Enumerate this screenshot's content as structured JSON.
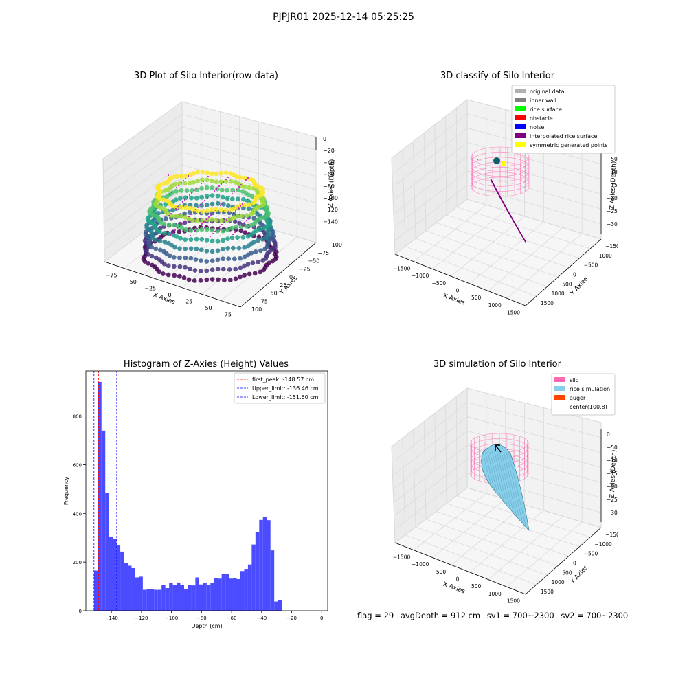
{
  "figure": {
    "suptitle": "PJPJR01 2025-12-14 05:25:25",
    "footer": {
      "flag": "flag = 29",
      "avg_depth": "avgDepth = 912 cm",
      "sv1": "sv1 = 700~2300",
      "sv2": "sv2 = 700~2300"
    }
  },
  "colors": {
    "hist_bar": "#4b4bff",
    "first_peak_line": "#ff0000",
    "limit_line": "#0000ff",
    "silo": "#ff69b4",
    "rice_sim": "#87ceeb",
    "auger": "#ff4500",
    "interp": "#800080",
    "symmetric": "#ffff00"
  },
  "chart_data": [
    {
      "id": "raw",
      "type": "scatter",
      "title": "3D Plot of Silo Interior(row data)",
      "xlabel": "X Axies",
      "ylabel": "Y Axies",
      "zlabel": "Z Axies (Depth)",
      "x_ticks": [
        "−75",
        "−50",
        "−25",
        "0",
        "25",
        "50",
        "75"
      ],
      "y_ticks": [
        "−100",
        "−75",
        "−50",
        "−25",
        "0",
        "25",
        "50",
        "75",
        "100"
      ],
      "z_ticks": [
        "0",
        "−20",
        "−40",
        "−60",
        "−80",
        "−100",
        "−120",
        "−140"
      ],
      "xlim": [
        -90,
        90
      ],
      "ylim": [
        -100,
        100
      ],
      "zlim": [
        -150,
        0
      ],
      "colormap": "viridis"
    },
    {
      "id": "classify",
      "type": "scatter",
      "title": "3D classify of Silo Interior",
      "xlabel": "X Axies",
      "ylabel": "Y Axies",
      "zlabel": "Z Axies (Depth)",
      "x_ticks": [
        "−1500",
        "−1000",
        "−500",
        "0",
        "500",
        "1000",
        "1500"
      ],
      "y_ticks": [
        "−1500",
        "−1000",
        "−500",
        "0",
        "500",
        "1000",
        "1500"
      ],
      "z_ticks": [
        "0",
        "−500",
        "−1000",
        "−1500",
        "−2000",
        "−2500",
        "−3000"
      ],
      "legend_position": "upper right",
      "legend": [
        {
          "label": "original data",
          "color": "#b0b0b0"
        },
        {
          "label": "inner wall",
          "color": "#808080"
        },
        {
          "label": "rice surface",
          "color": "#00ff00"
        },
        {
          "label": "obstacle",
          "color": "#ff0000"
        },
        {
          "label": "noise",
          "color": "#0000ff"
        },
        {
          "label": "interpolated rice surface",
          "color": "#800080"
        },
        {
          "label": "symmetric generated points",
          "color": "#ffff00"
        }
      ]
    },
    {
      "id": "hist",
      "type": "bar",
      "title": "Histogram of Z-Axies (Height) Values",
      "xlabel": "Depth (cm)",
      "ylabel": "Frequency",
      "xlim": [
        -157,
        4
      ],
      "ylim": [
        0,
        985
      ],
      "x_ticks": [
        -140,
        -120,
        -100,
        -80,
        -60,
        -40,
        -20,
        0
      ],
      "y_ticks": [
        0,
        200,
        400,
        600,
        800
      ],
      "bin_width": 2.5,
      "bin_start": -151.6,
      "values": [
        165,
        940,
        740,
        485,
        305,
        295,
        268,
        243,
        196,
        185,
        175,
        137,
        140,
        86,
        89,
        89,
        86,
        86,
        107,
        93,
        113,
        106,
        116,
        107,
        88,
        105,
        104,
        137,
        108,
        113,
        107,
        114,
        133,
        132,
        150,
        150,
        132,
        134,
        130,
        163,
        172,
        190,
        272,
        323,
        373,
        385,
        372,
        248,
        38,
        43
      ],
      "vlines": [
        {
          "label": "first_peak: -148.57 cm",
          "x": -148.57,
          "color": "#ff0000"
        },
        {
          "label": "Upper_limit: -136.46 cm",
          "x": -136.46,
          "color": "#0000ff"
        },
        {
          "label": "Lower_limit: -151.60 cm",
          "x": -151.6,
          "color": "#0000ff"
        }
      ],
      "legend_position": "upper right"
    },
    {
      "id": "sim",
      "type": "surface",
      "title": "3D simulation of Silo Interior",
      "xlabel": "X Axies",
      "ylabel": "Y Axies",
      "zlabel": "Z Axies (Depth)",
      "x_ticks": [
        "−1500",
        "−1000",
        "−500",
        "0",
        "500",
        "1000",
        "1500"
      ],
      "y_ticks": [
        "−1500",
        "−1000",
        "−500",
        "0",
        "500",
        "1000",
        "1500"
      ],
      "z_ticks": [
        "0",
        "−500",
        "−1000",
        "−1500",
        "−2000",
        "−2500",
        "−3000"
      ],
      "legend_position": "upper right",
      "legend": [
        {
          "label": "silo",
          "color": "#ff69b4"
        },
        {
          "label": "rice simulation",
          "color": "#87ceeb"
        },
        {
          "label": "auger",
          "color": "#ff4500"
        },
        {
          "label": "center(100,8)",
          "color": ""
        }
      ]
    }
  ]
}
